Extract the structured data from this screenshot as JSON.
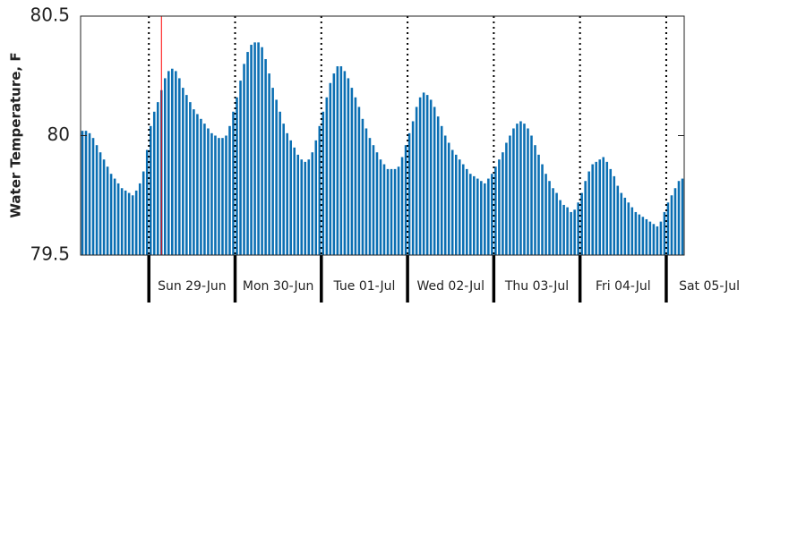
{
  "chart_data": {
    "type": "bar",
    "ylabel": "Water Temperature, F",
    "color": "#0b6fb3",
    "values": [
      80.02,
      80.02,
      80.01,
      79.99,
      79.96,
      79.93,
      79.9,
      79.87,
      79.84,
      79.82,
      79.8,
      79.78,
      79.77,
      79.76,
      79.75,
      79.77,
      79.8,
      79.85,
      79.94,
      80.04,
      80.1,
      80.14,
      80.19,
      80.24,
      80.27,
      80.28,
      80.27,
      80.24,
      80.2,
      80.17,
      80.14,
      80.11,
      80.09,
      80.07,
      80.05,
      80.03,
      80.01,
      80.0,
      79.99,
      79.99,
      80.0,
      80.04,
      80.1,
      80.16,
      80.23,
      80.3,
      80.35,
      80.38,
      80.39,
      80.39,
      80.37,
      80.32,
      80.26,
      80.2,
      80.15,
      80.1,
      80.05,
      80.01,
      79.98,
      79.95,
      79.92,
      79.9,
      79.89,
      79.9,
      79.93,
      79.98,
      80.04,
      80.1,
      80.16,
      80.22,
      80.26,
      80.29,
      80.29,
      80.27,
      80.24,
      80.2,
      80.16,
      80.12,
      80.07,
      80.03,
      79.99,
      79.96,
      79.93,
      79.9,
      79.88,
      79.86,
      79.86,
      79.86,
      79.87,
      79.91,
      79.96,
      80.01,
      80.06,
      80.12,
      80.16,
      80.18,
      80.17,
      80.15,
      80.12,
      80.08,
      80.04,
      80.0,
      79.97,
      79.94,
      79.92,
      79.9,
      79.88,
      79.86,
      79.84,
      79.83,
      79.82,
      79.81,
      79.8,
      79.82,
      79.84,
      79.87,
      79.9,
      79.93,
      79.97,
      80.0,
      80.03,
      80.05,
      80.06,
      80.05,
      80.03,
      80.0,
      79.96,
      79.92,
      79.88,
      79.84,
      79.81,
      79.78,
      79.76,
      79.73,
      79.71,
      79.7,
      79.68,
      79.69,
      79.72,
      79.76,
      79.81,
      79.85,
      79.88,
      79.89,
      79.9,
      79.91,
      79.89,
      79.86,
      79.83,
      79.79,
      79.76,
      79.74,
      79.72,
      79.7,
      79.68,
      79.67,
      79.66,
      79.65,
      79.64,
      79.63,
      79.62,
      79.64,
      79.68,
      79.72,
      79.75,
      79.78,
      79.81,
      79.82
    ],
    "xlim": [
      0,
      168
    ],
    "xticks": [
      {
        "value": 19,
        "label": "Sun 29-Jun"
      },
      {
        "value": 43,
        "label": "Mon 30-Jun"
      },
      {
        "value": 67,
        "label": "Tue 01-Jul"
      },
      {
        "value": 91,
        "label": "Wed 02-Jul"
      },
      {
        "value": 115,
        "label": "Thu 03-Jul"
      },
      {
        "value": 139,
        "label": "Fri 04-Jul"
      },
      {
        "value": 163,
        "label": "Sat 05-Jul"
      }
    ],
    "ylim": [
      79.5,
      80.5
    ],
    "yticks": [
      79.5,
      80,
      80.5
    ],
    "grid": true,
    "now_line": {
      "x": 22.5,
      "color": "#ff0000"
    }
  }
}
